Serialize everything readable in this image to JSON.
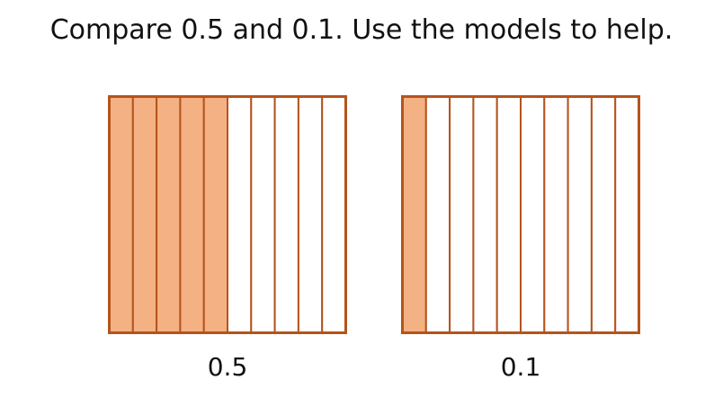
{
  "prompt": "Compare 0.5 and 0.1. Use the models to help.",
  "colors": {
    "fill": "#f4b183",
    "stroke": "#b5541c",
    "empty": "#ffffff"
  },
  "models": [
    {
      "label": "0.5",
      "parts": 10,
      "shaded": 5
    },
    {
      "label": "0.1",
      "parts": 10,
      "shaded": 1
    }
  ]
}
